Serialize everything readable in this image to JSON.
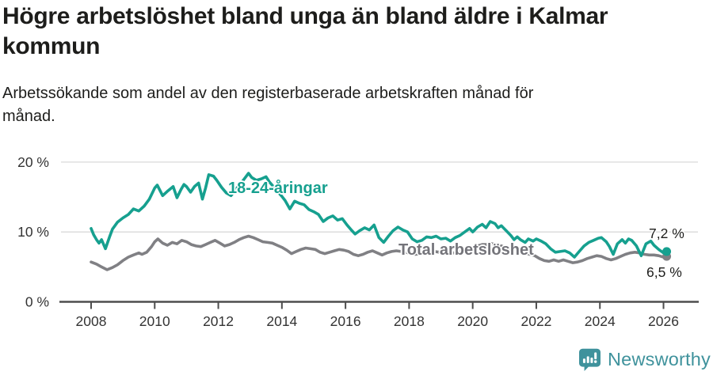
{
  "chart_data": {
    "type": "line",
    "title": "Högre arbetslöshet bland unga än bland äldre i Kalmar kommun",
    "subtitle": "Arbetssökande som andel av den registerbaserade arbetskraften månad för månad.",
    "unit": "%",
    "xlim": [
      2007.6,
      2026.7
    ],
    "ylim": [
      0,
      22.3
    ],
    "grid": true,
    "legend_position": "inline-labels",
    "x_ticks": [
      {
        "value": 2008,
        "label": "2008"
      },
      {
        "value": 2010,
        "label": "2010"
      },
      {
        "value": 2012,
        "label": "2012"
      },
      {
        "value": 2014,
        "label": "2014"
      },
      {
        "value": 2016,
        "label": "2016"
      },
      {
        "value": 2018,
        "label": "2018"
      },
      {
        "value": 2020,
        "label": "2020"
      },
      {
        "value": 2022,
        "label": "2022"
      },
      {
        "value": 2024,
        "label": "2024"
      },
      {
        "value": 2026,
        "label": "2026"
      }
    ],
    "y_ticks": [
      {
        "value": 0,
        "label": "0 %"
      },
      {
        "value": 10,
        "label": "10 %"
      },
      {
        "value": 20,
        "label": "20 %"
      }
    ],
    "series": [
      {
        "name": "18-24-åringar",
        "label": "18-24-åringar",
        "color": "#16a08f",
        "end_label": "7,2 %",
        "end_value": 7.2,
        "points": [
          [
            2008.0,
            10.5
          ],
          [
            2008.08,
            9.6
          ],
          [
            2008.17,
            8.9
          ],
          [
            2008.25,
            8.4
          ],
          [
            2008.33,
            8.9
          ],
          [
            2008.45,
            7.6
          ],
          [
            2008.58,
            9.3
          ],
          [
            2008.67,
            10.4
          ],
          [
            2008.83,
            11.4
          ],
          [
            2009.0,
            12.0
          ],
          [
            2009.17,
            12.5
          ],
          [
            2009.33,
            13.3
          ],
          [
            2009.5,
            13.0
          ],
          [
            2009.67,
            13.7
          ],
          [
            2009.83,
            14.7
          ],
          [
            2010.0,
            16.3
          ],
          [
            2010.08,
            16.7
          ],
          [
            2010.25,
            15.2
          ],
          [
            2010.42,
            15.9
          ],
          [
            2010.58,
            16.5
          ],
          [
            2010.7,
            14.9
          ],
          [
            2010.83,
            16.1
          ],
          [
            2010.92,
            16.8
          ],
          [
            2011.0,
            16.5
          ],
          [
            2011.13,
            15.7
          ],
          [
            2011.25,
            16.5
          ],
          [
            2011.38,
            17.0
          ],
          [
            2011.5,
            14.7
          ],
          [
            2011.6,
            16.3
          ],
          [
            2011.7,
            18.2
          ],
          [
            2011.85,
            18.0
          ],
          [
            2011.95,
            17.4
          ],
          [
            2012.1,
            16.4
          ],
          [
            2012.25,
            15.6
          ],
          [
            2012.4,
            15.2
          ],
          [
            2012.55,
            16.1
          ],
          [
            2012.7,
            16.9
          ],
          [
            2012.85,
            17.8
          ],
          [
            2012.95,
            18.4
          ],
          [
            2013.05,
            17.8
          ],
          [
            2013.2,
            17.4
          ],
          [
            2013.35,
            17.6
          ],
          [
            2013.5,
            17.9
          ],
          [
            2013.6,
            17.2
          ],
          [
            2013.75,
            16.4
          ],
          [
            2013.9,
            15.6
          ],
          [
            2014.0,
            15.1
          ],
          [
            2014.1,
            14.5
          ],
          [
            2014.25,
            13.3
          ],
          [
            2014.4,
            14.4
          ],
          [
            2014.55,
            14.1
          ],
          [
            2014.7,
            13.9
          ],
          [
            2014.85,
            13.2
          ],
          [
            2015.0,
            12.9
          ],
          [
            2015.15,
            12.5
          ],
          [
            2015.3,
            11.5
          ],
          [
            2015.45,
            12.0
          ],
          [
            2015.6,
            12.3
          ],
          [
            2015.75,
            11.7
          ],
          [
            2015.9,
            11.9
          ],
          [
            2016.05,
            11.0
          ],
          [
            2016.2,
            10.2
          ],
          [
            2016.3,
            9.7
          ],
          [
            2016.45,
            10.2
          ],
          [
            2016.6,
            10.6
          ],
          [
            2016.75,
            10.3
          ],
          [
            2016.9,
            11.0
          ],
          [
            2017.05,
            9.2
          ],
          [
            2017.2,
            8.5
          ],
          [
            2017.35,
            9.4
          ],
          [
            2017.5,
            10.2
          ],
          [
            2017.65,
            10.7
          ],
          [
            2017.8,
            10.3
          ],
          [
            2017.95,
            10.0
          ],
          [
            2018.1,
            9.0
          ],
          [
            2018.25,
            8.6
          ],
          [
            2018.4,
            8.8
          ],
          [
            2018.55,
            9.3
          ],
          [
            2018.7,
            9.2
          ],
          [
            2018.85,
            9.4
          ],
          [
            2019.0,
            9.0
          ],
          [
            2019.15,
            9.1
          ],
          [
            2019.3,
            8.7
          ],
          [
            2019.45,
            9.2
          ],
          [
            2019.6,
            9.5
          ],
          [
            2019.75,
            10.0
          ],
          [
            2019.9,
            10.5
          ],
          [
            2020.0,
            10.0
          ],
          [
            2020.15,
            10.7
          ],
          [
            2020.3,
            11.1
          ],
          [
            2020.42,
            10.6
          ],
          [
            2020.55,
            11.5
          ],
          [
            2020.7,
            11.2
          ],
          [
            2020.8,
            10.6
          ],
          [
            2020.9,
            10.9
          ],
          [
            2021.05,
            10.2
          ],
          [
            2021.2,
            9.5
          ],
          [
            2021.3,
            8.9
          ],
          [
            2021.4,
            9.3
          ],
          [
            2021.5,
            8.9
          ],
          [
            2021.65,
            8.5
          ],
          [
            2021.75,
            9.0
          ],
          [
            2021.9,
            8.7
          ],
          [
            2022.0,
            9.0
          ],
          [
            2022.15,
            8.7
          ],
          [
            2022.3,
            8.3
          ],
          [
            2022.45,
            7.6
          ],
          [
            2022.6,
            7.1
          ],
          [
            2022.75,
            7.2
          ],
          [
            2022.9,
            7.3
          ],
          [
            2023.05,
            7.0
          ],
          [
            2023.2,
            6.4
          ],
          [
            2023.35,
            7.2
          ],
          [
            2023.5,
            8.0
          ],
          [
            2023.65,
            8.5
          ],
          [
            2023.8,
            8.8
          ],
          [
            2023.95,
            9.1
          ],
          [
            2024.05,
            9.2
          ],
          [
            2024.2,
            8.6
          ],
          [
            2024.3,
            7.9
          ],
          [
            2024.42,
            6.8
          ],
          [
            2024.55,
            8.3
          ],
          [
            2024.7,
            8.9
          ],
          [
            2024.8,
            8.4
          ],
          [
            2024.9,
            9.0
          ],
          [
            2025.0,
            8.8
          ],
          [
            2025.15,
            8.0
          ],
          [
            2025.3,
            6.6
          ],
          [
            2025.45,
            8.3
          ],
          [
            2025.6,
            8.7
          ],
          [
            2025.7,
            8.1
          ],
          [
            2025.85,
            7.5
          ],
          [
            2026.0,
            7.0
          ],
          [
            2026.1,
            7.2
          ]
        ]
      },
      {
        "name": "Total arbetslöshet",
        "label": "Total arbetslöshet",
        "color": "#808084",
        "end_label": "6,5 %",
        "end_value": 6.5,
        "points": [
          [
            2008.0,
            5.7
          ],
          [
            2008.17,
            5.4
          ],
          [
            2008.33,
            5.0
          ],
          [
            2008.5,
            4.6
          ],
          [
            2008.67,
            4.9
          ],
          [
            2008.83,
            5.3
          ],
          [
            2009.0,
            5.9
          ],
          [
            2009.17,
            6.4
          ],
          [
            2009.33,
            6.7
          ],
          [
            2009.5,
            7.0
          ],
          [
            2009.6,
            6.8
          ],
          [
            2009.75,
            7.1
          ],
          [
            2009.9,
            7.9
          ],
          [
            2010.0,
            8.6
          ],
          [
            2010.1,
            9.0
          ],
          [
            2010.25,
            8.4
          ],
          [
            2010.4,
            8.1
          ],
          [
            2010.55,
            8.5
          ],
          [
            2010.7,
            8.3
          ],
          [
            2010.85,
            8.8
          ],
          [
            2011.0,
            8.6
          ],
          [
            2011.15,
            8.2
          ],
          [
            2011.3,
            8.0
          ],
          [
            2011.45,
            7.9
          ],
          [
            2011.6,
            8.2
          ],
          [
            2011.75,
            8.5
          ],
          [
            2011.9,
            8.8
          ],
          [
            2012.05,
            8.4
          ],
          [
            2012.2,
            8.0
          ],
          [
            2012.35,
            8.2
          ],
          [
            2012.5,
            8.5
          ],
          [
            2012.65,
            8.9
          ],
          [
            2012.8,
            9.2
          ],
          [
            2012.95,
            9.4
          ],
          [
            2013.1,
            9.2
          ],
          [
            2013.25,
            8.9
          ],
          [
            2013.4,
            8.6
          ],
          [
            2013.55,
            8.5
          ],
          [
            2013.7,
            8.4
          ],
          [
            2013.85,
            8.1
          ],
          [
            2014.0,
            7.8
          ],
          [
            2014.15,
            7.4
          ],
          [
            2014.3,
            6.9
          ],
          [
            2014.45,
            7.2
          ],
          [
            2014.6,
            7.5
          ],
          [
            2014.75,
            7.7
          ],
          [
            2014.9,
            7.6
          ],
          [
            2015.05,
            7.5
          ],
          [
            2015.2,
            7.1
          ],
          [
            2015.35,
            6.9
          ],
          [
            2015.5,
            7.1
          ],
          [
            2015.65,
            7.3
          ],
          [
            2015.8,
            7.5
          ],
          [
            2015.95,
            7.4
          ],
          [
            2016.1,
            7.2
          ],
          [
            2016.25,
            6.8
          ],
          [
            2016.4,
            6.6
          ],
          [
            2016.55,
            6.8
          ],
          [
            2016.7,
            7.1
          ],
          [
            2016.85,
            7.3
          ],
          [
            2017.0,
            7.0
          ],
          [
            2017.15,
            6.7
          ],
          [
            2017.3,
            7.0
          ],
          [
            2017.45,
            7.2
          ],
          [
            2017.6,
            7.3
          ],
          [
            2017.75,
            7.2
          ],
          [
            2017.9,
            7.1
          ],
          [
            2018.05,
            6.9
          ],
          [
            2018.2,
            6.8
          ],
          [
            2018.35,
            6.9
          ],
          [
            2018.5,
            7.0
          ],
          [
            2018.65,
            7.1
          ],
          [
            2018.8,
            7.2
          ],
          [
            2018.95,
            7.1
          ],
          [
            2019.1,
            7.0
          ],
          [
            2019.25,
            6.9
          ],
          [
            2019.4,
            7.0
          ],
          [
            2019.55,
            7.1
          ],
          [
            2019.7,
            7.3
          ],
          [
            2019.85,
            7.5
          ],
          [
            2020.0,
            7.7
          ],
          [
            2020.15,
            8.0
          ],
          [
            2020.3,
            8.2
          ],
          [
            2020.45,
            8.2
          ],
          [
            2020.6,
            8.3
          ],
          [
            2020.75,
            8.2
          ],
          [
            2020.9,
            8.0
          ],
          [
            2021.05,
            7.8
          ],
          [
            2021.2,
            7.6
          ],
          [
            2021.35,
            7.4
          ],
          [
            2021.5,
            7.2
          ],
          [
            2021.65,
            7.0
          ],
          [
            2021.8,
            6.8
          ],
          [
            2021.95,
            6.6
          ],
          [
            2022.1,
            6.2
          ],
          [
            2022.25,
            5.9
          ],
          [
            2022.4,
            5.8
          ],
          [
            2022.55,
            6.0
          ],
          [
            2022.7,
            5.8
          ],
          [
            2022.85,
            6.0
          ],
          [
            2023.0,
            5.8
          ],
          [
            2023.15,
            5.6
          ],
          [
            2023.3,
            5.7
          ],
          [
            2023.45,
            5.9
          ],
          [
            2023.6,
            6.2
          ],
          [
            2023.75,
            6.4
          ],
          [
            2023.9,
            6.6
          ],
          [
            2024.05,
            6.5
          ],
          [
            2024.2,
            6.2
          ],
          [
            2024.35,
            6.0
          ],
          [
            2024.5,
            6.2
          ],
          [
            2024.65,
            6.5
          ],
          [
            2024.8,
            6.8
          ],
          [
            2024.95,
            7.0
          ],
          [
            2025.1,
            7.1
          ],
          [
            2025.25,
            7.0
          ],
          [
            2025.4,
            6.8
          ],
          [
            2025.55,
            6.7
          ],
          [
            2025.7,
            6.7
          ],
          [
            2025.85,
            6.6
          ],
          [
            2026.0,
            6.4
          ],
          [
            2026.1,
            6.5
          ]
        ]
      }
    ],
    "colors": {
      "youth_line": "#16a08f",
      "total_line": "#808084",
      "total_label": "#74747a",
      "axis": "#4d4d4d",
      "grid": "#d9d9d9",
      "tick_text": "#333333",
      "brand": "#3f929c"
    }
  },
  "footer": {
    "brand": "Newsworthy"
  }
}
